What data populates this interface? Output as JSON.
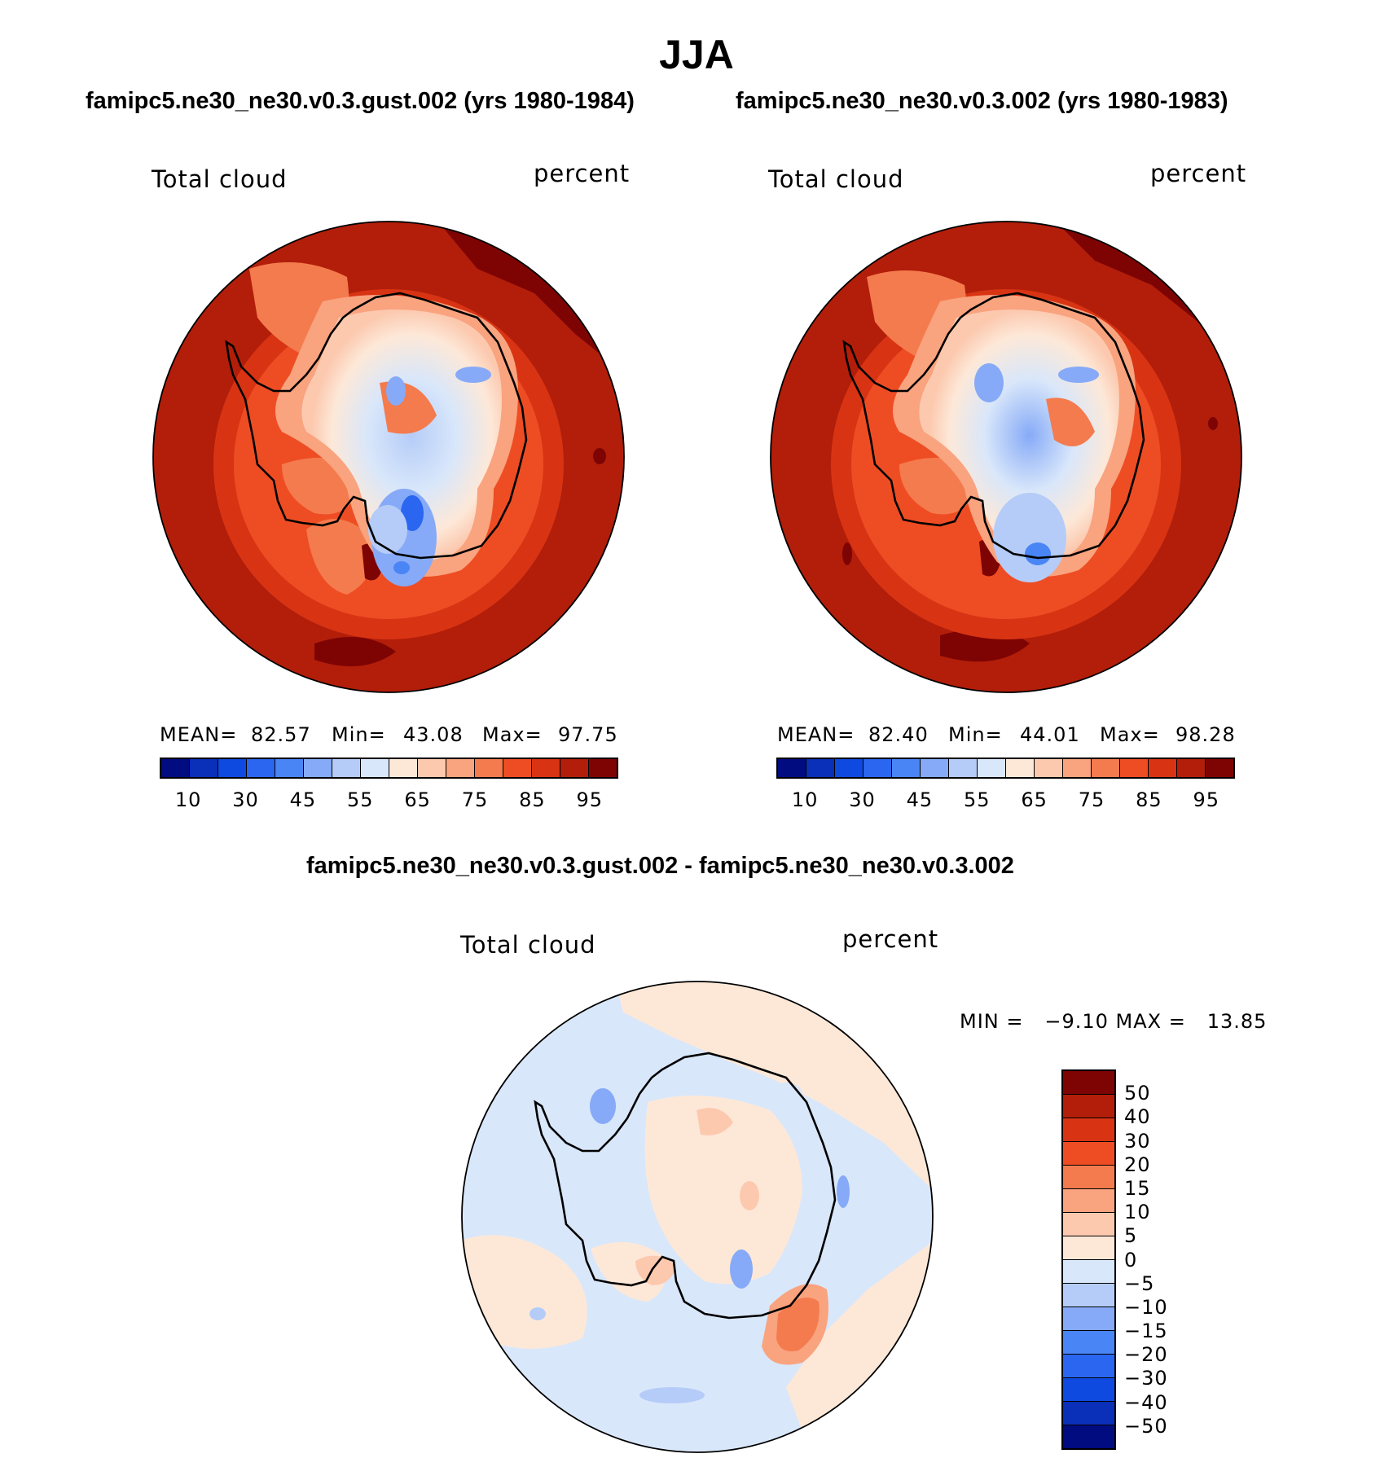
{
  "title": "JJA",
  "panel_left": {
    "case_title": "famipc5.ne30_ne30.v0.3.gust.002 (yrs 1980-1984)",
    "variable": "Total cloud",
    "units": "percent",
    "stats": {
      "mean_label": "MEAN=",
      "mean": "82.57",
      "min_label": "Min=",
      "min": "43.08",
      "max_label": "Max=",
      "max": "97.75"
    }
  },
  "panel_right": {
    "case_title": "famipc5.ne30_ne30.v0.3.002 (yrs 1980-1983)",
    "variable": "Total cloud",
    "units": "percent",
    "stats": {
      "mean_label": "MEAN=",
      "mean": "82.40",
      "min_label": "Min=",
      "min": "44.01",
      "max_label": "Max=",
      "max": "98.28"
    }
  },
  "abs_colorbar": {
    "colors": [
      "#000c80",
      "#0a2fb8",
      "#0f4ae0",
      "#2a66f0",
      "#4a85f5",
      "#86aaf7",
      "#b5ccf8",
      "#d9e7fa",
      "#fde8d8",
      "#fcc9af",
      "#f9a37f",
      "#f47b4d",
      "#ee4d24",
      "#d83414",
      "#b21e0a",
      "#7e0404"
    ],
    "tick_labels": [
      "10",
      "30",
      "45",
      "55",
      "65",
      "75",
      "85",
      "95"
    ]
  },
  "diff_panel": {
    "title": "famipc5.ne30_ne30.v0.3.gust.002 - famipc5.ne30_ne30.v0.3.002",
    "variable": "Total cloud",
    "units": "percent",
    "min_max": "MIN =   −9.10 MAX =   13.85"
  },
  "diff_colorbar": {
    "colors": [
      "#7e0404",
      "#b21e0a",
      "#d83414",
      "#ee4d24",
      "#f47b4d",
      "#f9a37f",
      "#fcc9af",
      "#fde8d8",
      "#d9e7fa",
      "#b5ccf8",
      "#86aaf7",
      "#4a85f5",
      "#2a66f0",
      "#0f4ae0",
      "#0a2fb8",
      "#000c80"
    ],
    "tick_labels": [
      "50",
      "40",
      "30",
      "20",
      "15",
      "10",
      "5",
      "0",
      "−5",
      "−10",
      "−15",
      "−20",
      "−30",
      "−40",
      "−50"
    ]
  }
}
